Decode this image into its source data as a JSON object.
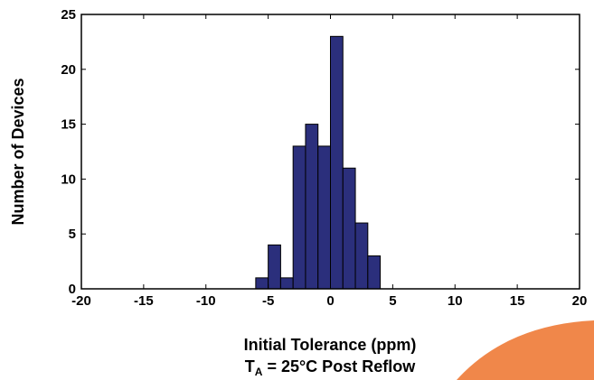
{
  "chart_data": {
    "type": "bar",
    "bin_width": 1,
    "x": [
      -6,
      -5,
      -4,
      -3,
      -2,
      -1,
      0,
      1,
      2,
      3
    ],
    "values": [
      1,
      4,
      1,
      13,
      15,
      13,
      23,
      11,
      6,
      3
    ],
    "xlim": [
      -20,
      20
    ],
    "ylim": [
      0,
      25
    ],
    "xticks": [
      "-20",
      "-15",
      "-10",
      "-5",
      "0",
      "5",
      "10",
      "15",
      "20"
    ],
    "yticks": [
      "0",
      "5",
      "10",
      "15",
      "20",
      "25"
    ],
    "xlabel": "Initial Tolerance (ppm)",
    "xlabel_line2": {
      "main": "T",
      "subscript": "A",
      "rest": " = 25°C Post Reflow"
    },
    "ylabel": "Number of Devices",
    "grid": false,
    "colors": {
      "bar_fill": "#2b2f7c",
      "bar_edge": "#000000",
      "accent_shape": "#f0874a"
    }
  }
}
